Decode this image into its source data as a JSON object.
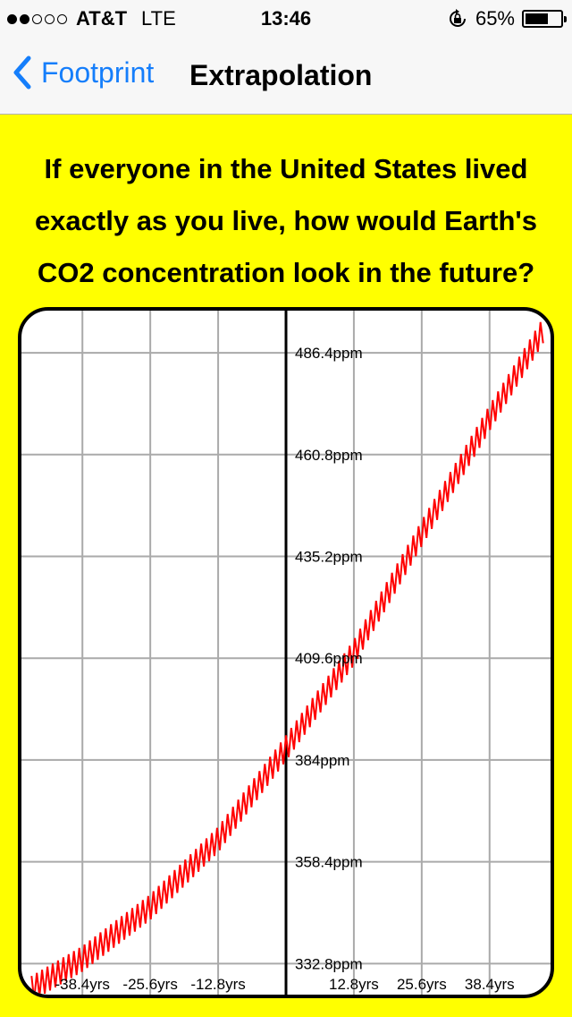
{
  "status_bar": {
    "signal_bars_filled": 2,
    "signal_bars_total": 5,
    "carrier": "AT&T",
    "network": "LTE",
    "time": "13:46",
    "rotation_lock_icon": "rotation-lock-icon",
    "battery_percent_label": "65%",
    "battery_level": 0.65
  },
  "nav": {
    "back_label": "Footprint",
    "back_icon": "chevron-left-icon",
    "title": "Extrapolation"
  },
  "question": {
    "lines": [
      "If everyone in the United States lived",
      "exactly as you live, how would Earth's",
      "CO2 concentration look in the future?"
    ]
  },
  "colors": {
    "background": "#ffff00",
    "accent": "#157efb",
    "curve": "#ff0000",
    "grid": "#aaaaaa"
  },
  "chart_data": {
    "type": "line",
    "xlabel": "",
    "ylabel": "",
    "x_ticks": [
      "-38.4yrs",
      "-25.6yrs",
      "-12.8yrs",
      "12.8yrs",
      "25.6yrs",
      "38.4yrs"
    ],
    "x_tick_values": [
      -38.4,
      -25.6,
      -12.8,
      12.8,
      25.6,
      38.4
    ],
    "y_ticks": [
      "332.8ppm",
      "358.4ppm",
      "384ppm",
      "409.6ppm",
      "435.2ppm",
      "460.8ppm",
      "486.4ppm"
    ],
    "y_tick_values": [
      332.8,
      358.4,
      384,
      409.6,
      435.2,
      460.8,
      486.4
    ],
    "xlim": [
      -49.9,
      49.9
    ],
    "ylim": [
      325,
      497
    ],
    "grid": true,
    "series": [
      {
        "trend_points": [
          [
            -48,
            326.5
          ],
          [
            -38.4,
            334
          ],
          [
            -25.6,
            347
          ],
          [
            -12.8,
            364
          ],
          [
            0,
            387
          ],
          [
            12.8,
            411
          ],
          [
            25.6,
            441
          ],
          [
            38.4,
            470
          ],
          [
            48.5,
            492
          ]
        ],
        "seasonal_amplitude_ppm": 3.2,
        "cycle_years": 1
      }
    ]
  }
}
